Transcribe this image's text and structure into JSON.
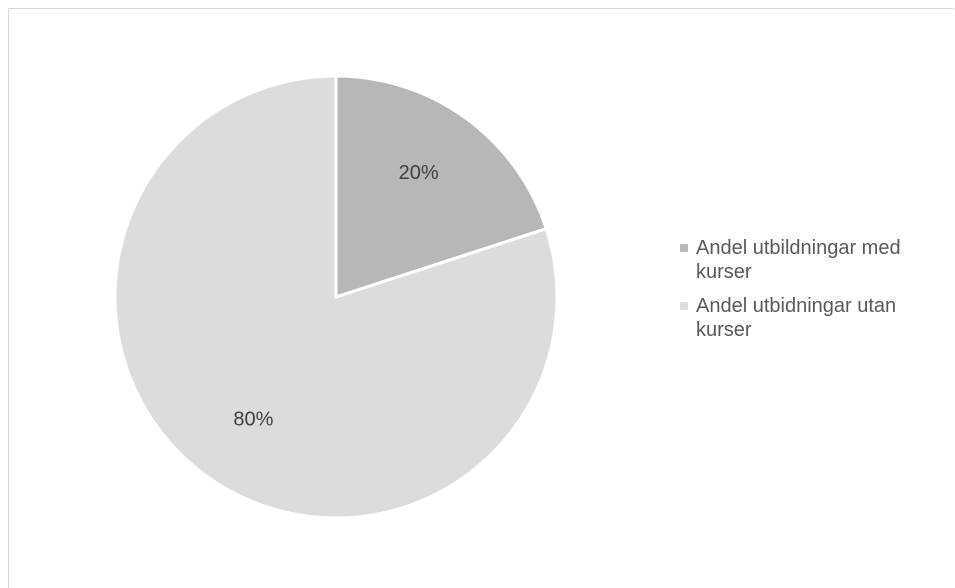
{
  "chart_data": {
    "type": "pie",
    "title": "",
    "series": [
      {
        "name": "Andel utbildningar med kurser",
        "value": 20,
        "label": "20%",
        "color": "#b7b7b7"
      },
      {
        "name": "Andel utbidningar utan kurser",
        "value": 80,
        "label": "80%",
        "color": "#dcdcdc"
      }
    ],
    "legend_position": "right"
  }
}
